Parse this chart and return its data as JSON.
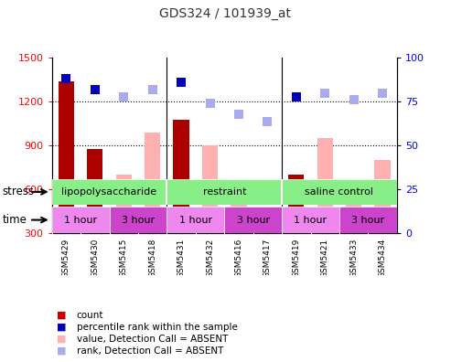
{
  "title": "GDS324 / 101939_at",
  "samples": [
    "GSM5429",
    "GSM5430",
    "GSM5415",
    "GSM5418",
    "GSM5431",
    "GSM5432",
    "GSM5416",
    "GSM5417",
    "GSM5419",
    "GSM5421",
    "GSM5433",
    "GSM5434"
  ],
  "count_values": [
    1340,
    880,
    null,
    null,
    1080,
    null,
    null,
    null,
    700,
    null,
    null,
    null
  ],
  "absent_value": [
    null,
    null,
    700,
    990,
    null,
    900,
    620,
    460,
    null,
    950,
    660,
    800
  ],
  "percentile_rank": [
    88,
    82,
    78,
    82,
    86,
    74,
    68,
    64,
    78,
    80,
    76,
    80
  ],
  "absent_rank": [
    null,
    null,
    null,
    null,
    null,
    null,
    null,
    64,
    null,
    null,
    null,
    null
  ],
  "dark_blue_dots": [
    true,
    true,
    false,
    false,
    true,
    false,
    false,
    false,
    true,
    false,
    false,
    false
  ],
  "light_blue_dots": [
    false,
    false,
    true,
    true,
    false,
    true,
    true,
    true,
    false,
    true,
    true,
    true
  ],
  "ylim_left": [
    300,
    1500
  ],
  "ylim_right": [
    0,
    100
  ],
  "yticks_left": [
    300,
    600,
    900,
    1200,
    1500
  ],
  "yticks_right": [
    0,
    25,
    50,
    75,
    100
  ],
  "stress_groups": [
    {
      "label": "lipopolysaccharide",
      "start": 0,
      "end": 4
    },
    {
      "label": "restraint",
      "start": 4,
      "end": 8
    },
    {
      "label": "saline control",
      "start": 8,
      "end": 12
    }
  ],
  "time_groups": [
    {
      "label": "1 hour",
      "start": 0,
      "end": 2
    },
    {
      "label": "3 hour",
      "start": 2,
      "end": 4
    },
    {
      "label": "1 hour",
      "start": 4,
      "end": 6
    },
    {
      "label": "3 hour",
      "start": 6,
      "end": 8
    },
    {
      "label": "1 hour",
      "start": 8,
      "end": 10
    },
    {
      "label": "3 hour",
      "start": 10,
      "end": 12
    }
  ],
  "legend_items": [
    {
      "label": "count",
      "color": "#cc0000"
    },
    {
      "label": "percentile rank within the sample",
      "color": "#0000bb"
    },
    {
      "label": "value, Detection Call = ABSENT",
      "color": "#ffb0b0"
    },
    {
      "label": "rank, Detection Call = ABSENT",
      "color": "#aaaaee"
    }
  ],
  "bar_color_dark": "#aa0000",
  "bar_color_absent": "#ffb0b0",
  "dot_color_dark": "#0000bb",
  "dot_color_light": "#aaaaee",
  "stress_color": "#88ee88",
  "time_color_1": "#ee88ee",
  "time_color_2": "#cc44cc",
  "background_color": "#ffffff"
}
